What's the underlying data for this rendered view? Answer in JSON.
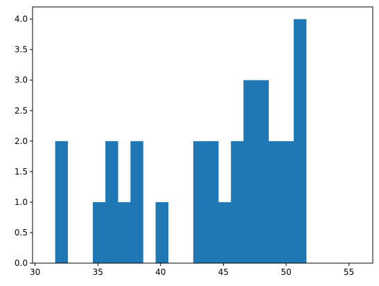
{
  "chart_data": {
    "type": "bar",
    "histogram": true,
    "bar_color": "#1f77b4",
    "bins": [
      {
        "x0": 31.6,
        "x1": 32.6,
        "value": 2
      },
      {
        "x0": 32.6,
        "x1": 33.6,
        "value": 0
      },
      {
        "x0": 33.6,
        "x1": 34.6,
        "value": 0
      },
      {
        "x0": 34.6,
        "x1": 35.6,
        "value": 1
      },
      {
        "x0": 35.6,
        "x1": 36.6,
        "value": 2
      },
      {
        "x0": 36.6,
        "x1": 37.6,
        "value": 1
      },
      {
        "x0": 37.6,
        "x1": 38.6,
        "value": 2
      },
      {
        "x0": 38.6,
        "x1": 39.6,
        "value": 0
      },
      {
        "x0": 39.6,
        "x1": 40.6,
        "value": 1
      },
      {
        "x0": 40.6,
        "x1": 41.6,
        "value": 0
      },
      {
        "x0": 41.6,
        "x1": 42.6,
        "value": 0
      },
      {
        "x0": 42.6,
        "x1": 43.6,
        "value": 2
      },
      {
        "x0": 43.6,
        "x1": 44.6,
        "value": 2
      },
      {
        "x0": 44.6,
        "x1": 45.6,
        "value": 1
      },
      {
        "x0": 45.6,
        "x1": 46.6,
        "value": 2
      },
      {
        "x0": 46.6,
        "x1": 47.6,
        "value": 3
      },
      {
        "x0": 47.6,
        "x1": 48.6,
        "value": 3
      },
      {
        "x0": 48.6,
        "x1": 49.6,
        "value": 2
      },
      {
        "x0": 49.6,
        "x1": 50.6,
        "value": 2
      },
      {
        "x0": 50.6,
        "x1": 51.6,
        "value": 4
      }
    ],
    "xlim": [
      29.8,
      56.9
    ],
    "ylim": [
      0,
      4.2
    ],
    "x_ticks": [
      "30",
      "35",
      "40",
      "45",
      "50",
      "55"
    ],
    "y_ticks": [
      "0.0",
      "0.5",
      "1.0",
      "1.5",
      "2.0",
      "2.5",
      "3.0",
      "3.5",
      "4.0"
    ],
    "title": "",
    "xlabel": "",
    "ylabel": "",
    "grid": false
  }
}
